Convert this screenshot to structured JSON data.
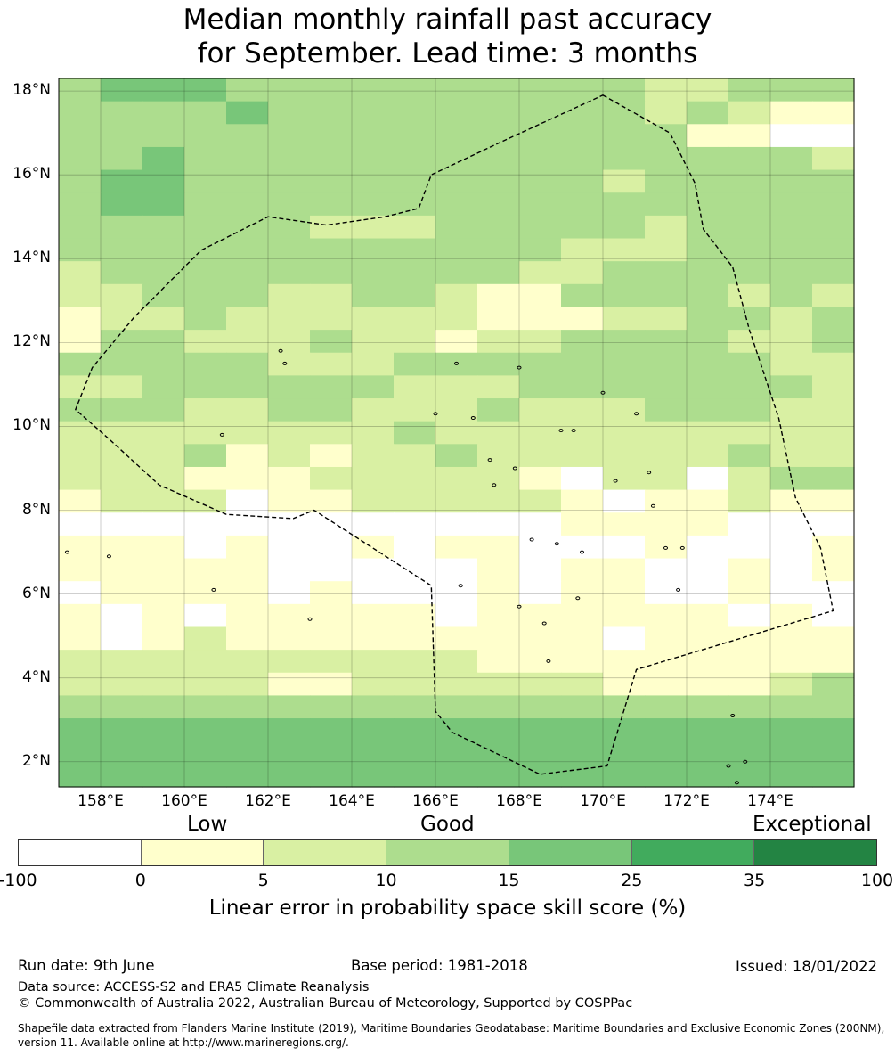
{
  "title": {
    "line1": "Median monthly rainfall past accuracy",
    "line2": "for September. Lead time: 3 months"
  },
  "chart_data": {
    "type": "heatmap",
    "lon_range": [
      157,
      176
    ],
    "lat_range": [
      1.4,
      18.3
    ],
    "cell_size_deg": 0.833,
    "grid_rows_north_to_south": [
      "3444333333333322333",
      "3333433333333323211",
      "3333333333333331100",
      "3343333333333333332",
      "3443333333333233333",
      "3443333333333333333",
      "3333332223333323333",
      "3333333333332223333",
      "2333333333322333333",
      "2233322332113333232",
      "1223222222111223323",
      "1332223221223333223",
      "3333322233333333322",
      "2233333322233333332",
      "3332233222322233322",
      "2222222232222222222",
      "2223121223222222322",
      "2221112222210220233",
      "1222011222221011211",
      "0000000000001111000",
      "1110100101100010001",
      "1111100000101100101",
      "0111101000101100100",
      "1010111110111111010",
      "1012111111111011111",
      "2222222222111111111",
      "2222211222222111123",
      "3333333333333333333",
      "4444444444444444444",
      "4444444444444444444",
      "4444444444444444444"
    ],
    "color_classes": [
      "#ffffff",
      "#ffffcc",
      "#d9f0a3",
      "#addd8e",
      "#78c679",
      "#41ab5d",
      "#238443"
    ],
    "y_ticks": [
      "18°N",
      "16°N",
      "14°N",
      "12°N",
      "10°N",
      "8°N",
      "6°N",
      "4°N",
      "2°N"
    ],
    "y_tick_values": [
      18,
      16,
      14,
      12,
      10,
      8,
      6,
      4,
      2
    ],
    "x_ticks": [
      "158°E",
      "160°E",
      "162°E",
      "164°E",
      "166°E",
      "168°E",
      "170°E",
      "172°E",
      "174°E"
    ],
    "x_tick_values": [
      158,
      160,
      162,
      164,
      166,
      168,
      170,
      172,
      174
    ],
    "boundary_outline": [
      [
        170.0,
        17.9
      ],
      [
        171.6,
        17.0
      ],
      [
        172.2,
        15.8
      ],
      [
        172.4,
        14.7
      ],
      [
        173.1,
        13.8
      ],
      [
        173.5,
        12.3
      ],
      [
        174.2,
        10.2
      ],
      [
        174.6,
        8.3
      ],
      [
        175.2,
        7.1
      ],
      [
        175.5,
        5.6
      ],
      [
        171.8,
        4.5
      ],
      [
        170.8,
        4.2
      ],
      [
        170.1,
        1.9
      ],
      [
        168.5,
        1.7
      ],
      [
        166.4,
        2.7
      ],
      [
        166.0,
        3.2
      ],
      [
        165.9,
        6.2
      ],
      [
        163.1,
        8.0
      ],
      [
        162.6,
        7.8
      ],
      [
        161.0,
        7.9
      ],
      [
        159.4,
        8.6
      ],
      [
        158.2,
        9.7
      ],
      [
        157.4,
        10.4
      ],
      [
        157.8,
        11.4
      ],
      [
        158.8,
        12.6
      ],
      [
        160.4,
        14.2
      ],
      [
        162.0,
        15.0
      ],
      [
        163.4,
        14.8
      ],
      [
        164.8,
        15.0
      ],
      [
        165.6,
        15.2
      ],
      [
        165.9,
        16.0
      ],
      [
        167.6,
        16.8
      ],
      [
        170.0,
        17.9
      ]
    ],
    "islands": [
      [
        157.2,
        7.0
      ],
      [
        158.2,
        6.9
      ],
      [
        160.7,
        6.1
      ],
      [
        160.9,
        9.8
      ],
      [
        162.3,
        11.8
      ],
      [
        162.4,
        11.5
      ],
      [
        163.0,
        5.4
      ],
      [
        166.5,
        11.5
      ],
      [
        166.9,
        10.2
      ],
      [
        166.0,
        10.3
      ],
      [
        167.3,
        9.2
      ],
      [
        167.9,
        9.0
      ],
      [
        167.4,
        8.6
      ],
      [
        168.3,
        7.3
      ],
      [
        168.9,
        7.2
      ],
      [
        169.5,
        7.0
      ],
      [
        170.3,
        8.7
      ],
      [
        171.1,
        8.9
      ],
      [
        171.2,
        8.1
      ],
      [
        171.5,
        7.1
      ],
      [
        171.9,
        7.1
      ],
      [
        171.8,
        6.1
      ],
      [
        169.4,
        5.9
      ],
      [
        168.6,
        5.3
      ],
      [
        168.0,
        5.7
      ],
      [
        168.7,
        4.4
      ],
      [
        170.0,
        10.8
      ],
      [
        170.8,
        10.3
      ],
      [
        173.1,
        3.1
      ],
      [
        173.0,
        1.9
      ],
      [
        173.2,
        1.5
      ],
      [
        173.4,
        2.0
      ],
      [
        168.0,
        11.4
      ],
      [
        169.0,
        9.9
      ],
      [
        169.3,
        9.9
      ],
      [
        166.6,
        6.2
      ]
    ],
    "colorbar": {
      "categories": [
        "Low",
        "Good",
        "Exceptional"
      ],
      "tick_labels": [
        "-100",
        "0",
        "5",
        "10",
        "15",
        "25",
        "35",
        "100"
      ],
      "label": "Linear error in probability space skill score (%)"
    }
  },
  "footer": {
    "run_date": "Run date: 9th June",
    "base_period": "Base period: 1981-2018",
    "issued": "Issued: 18/01/2022",
    "data_source": "Data source: ACCESS-S2 and ERA5 Climate Reanalysis",
    "copyright": "© Commonwealth of Australia 2022, Australian Bureau of Meteorology, Supported by COSPPac",
    "shapefile": "Shapefile data extracted from Flanders Marine Institute (2019), Maritime Boundaries Geodatabase: Maritime Boundaries and Exclusive Economic Zones (200NM), version 11. Available online at http://www.marineregions.org/."
  }
}
